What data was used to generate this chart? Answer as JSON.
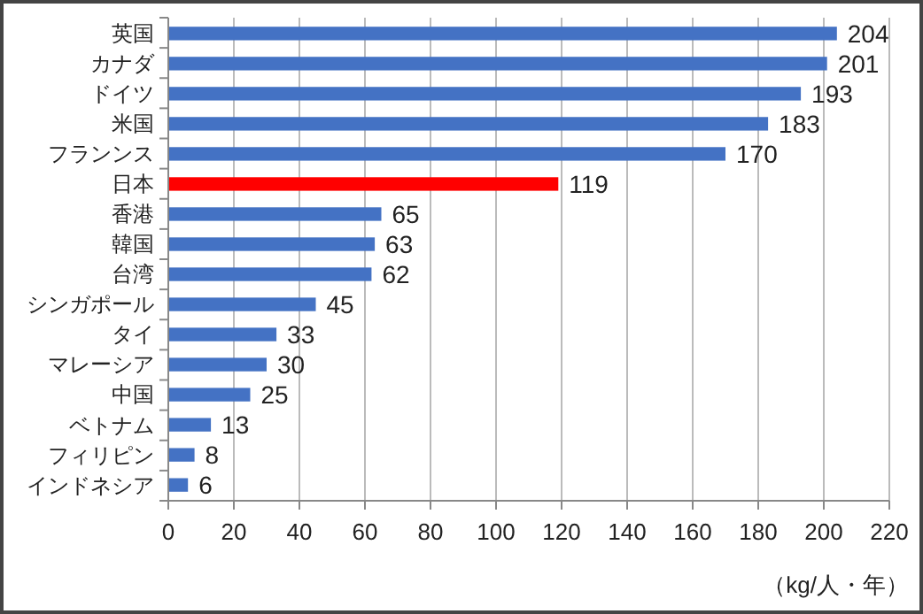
{
  "chart_data": {
    "type": "bar",
    "orientation": "horizontal",
    "categories": [
      "英国",
      "カナダ",
      "ドイツ",
      "米国",
      "フランンス",
      "日本",
      "香港",
      "韓国",
      "台湾",
      "シンガポール",
      "タイ",
      "マレーシア",
      "中国",
      "ベトナム",
      "フィリピン",
      "インドネシア"
    ],
    "values": [
      204,
      201,
      193,
      183,
      170,
      119,
      65,
      63,
      62,
      45,
      33,
      30,
      25,
      13,
      8,
      6
    ],
    "colors": [
      "#4472c4",
      "#4472c4",
      "#4472c4",
      "#4472c4",
      "#4472c4",
      "#ff0000",
      "#4472c4",
      "#4472c4",
      "#4472c4",
      "#4472c4",
      "#4472c4",
      "#4472c4",
      "#4472c4",
      "#4472c4",
      "#4472c4",
      "#4472c4"
    ],
    "xlim": [
      0,
      220
    ],
    "xticks": [
      0,
      20,
      40,
      60,
      80,
      100,
      120,
      140,
      160,
      180,
      200,
      220
    ],
    "xlabel": "（kg/人・年）",
    "grid": "x",
    "data_labels": true
  }
}
